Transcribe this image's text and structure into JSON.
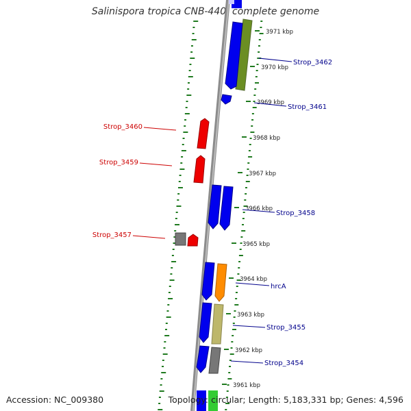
{
  "title": "Salinispora tropica CNB-440, complete genome",
  "accession": "Accession: NC_009380",
  "summary": "Topology: circular; Length: 5,183,331 bp; Genes: 4,596",
  "colors": {
    "backbone": "#8c8c8c",
    "forward_label": "#cc0000",
    "reverse_label": "#00008b",
    "gc_dots": "#1f7a1f"
  },
  "ticks": [
    "3971 kbp",
    "3970 kbp",
    "3969 kbp",
    "3968 kbp",
    "3967 kbp",
    "3966 kbp",
    "3965 kbp",
    "3964 kbp",
    "3963 kbp",
    "3962 kbp",
    "3961 kbp"
  ],
  "genes": [
    {
      "label": "Strop_3462",
      "strand": "reverse",
      "color": "#6b8e23"
    },
    {
      "label": "Strop_3461",
      "strand": "reverse",
      "color": "#0000ee"
    },
    {
      "label": "Strop_3460",
      "strand": "forward",
      "color": "#ee0000"
    },
    {
      "label": "Strop_3459",
      "strand": "forward",
      "color": "#ee0000"
    },
    {
      "label": "Strop_3458",
      "strand": "reverse",
      "color": "#0000ee"
    },
    {
      "label": "Strop_3457",
      "strand": "forward",
      "color": "#ee0000"
    },
    {
      "label": "hrcA",
      "strand": "reverse",
      "color": "#ff8c00"
    },
    {
      "label": "Strop_3455",
      "strand": "reverse",
      "color": "#bdb76b"
    },
    {
      "label": "Strop_3454",
      "strand": "reverse",
      "color": "#777777"
    }
  ]
}
